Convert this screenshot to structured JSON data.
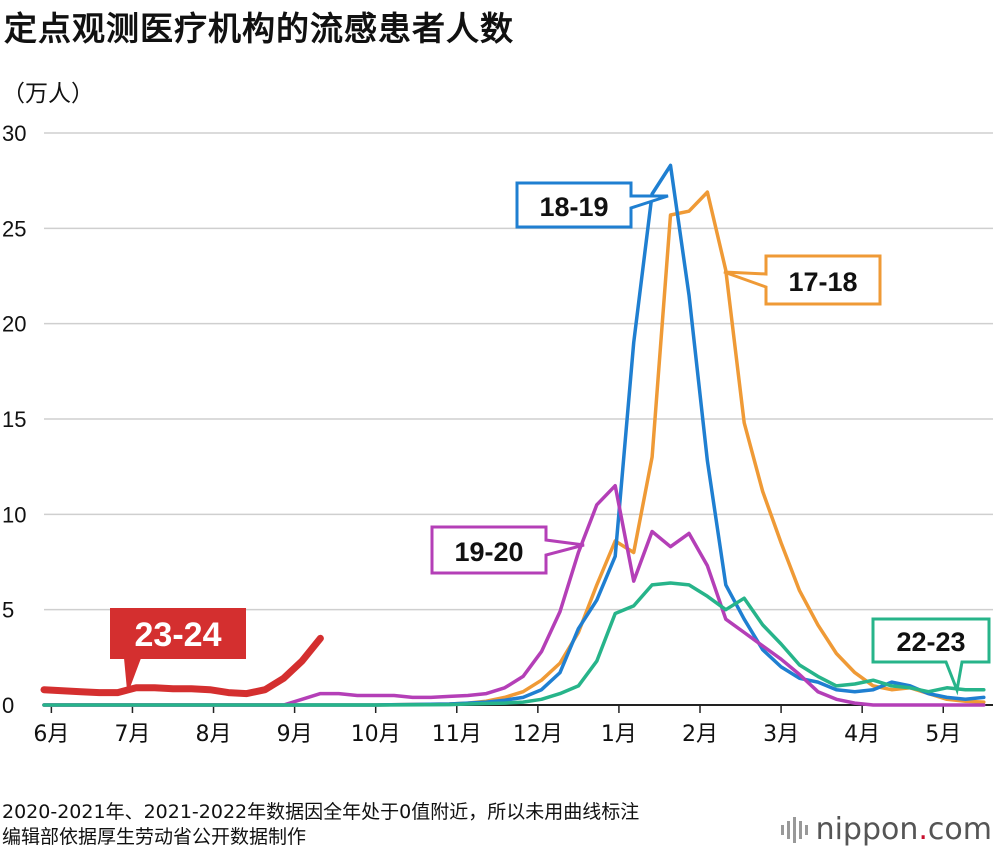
{
  "title": "定点观测医疗机构的流感患者人数",
  "unit_label": "（万人）",
  "footer": {
    "note": "2020-2021年、2021-2022年数据因全年处于0值附近，所以未用曲线标注",
    "source": "编辑部依据厚生劳动省公开数据制作"
  },
  "brand": {
    "name": "nippon",
    "dot": ".",
    "tld": "com"
  },
  "chart_data": {
    "type": "line",
    "title": "定点观测医疗机构的流感患者人数",
    "ylabel": "（万人）",
    "ylim": [
      0,
      30
    ],
    "yticks": [
      0,
      5,
      10,
      15,
      20,
      25,
      30
    ],
    "xlim": [
      0,
      51.5
    ],
    "x_unit": "week index from start of June",
    "x_tick_labels": [
      "6月",
      "7月",
      "8月",
      "9月",
      "10月",
      "11月",
      "12月",
      "1月",
      "2月",
      "3月",
      "4月",
      "5月"
    ],
    "x_tick_positions": [
      0.4,
      4.8,
      9.2,
      13.6,
      18.0,
      22.4,
      26.8,
      31.2,
      35.6,
      40.0,
      44.4,
      48.8
    ],
    "grid": true,
    "series": [
      {
        "name": "17-18",
        "color": "#ef9a36",
        "width": 3.5,
        "x": [
          0,
          13,
          18,
          22,
          23,
          24,
          25,
          26,
          27,
          28,
          29,
          30,
          31,
          32,
          33,
          34,
          35,
          36,
          37,
          38,
          39,
          40,
          41,
          42,
          43,
          44,
          45,
          46,
          47,
          48,
          49,
          50,
          51
        ],
        "y": [
          0,
          0,
          0,
          0.05,
          0.1,
          0.2,
          0.4,
          0.7,
          1.3,
          2.2,
          3.8,
          6.3,
          8.6,
          8.0,
          13.0,
          25.7,
          25.9,
          26.9,
          22.8,
          14.8,
          11.2,
          8.5,
          6.0,
          4.2,
          2.7,
          1.7,
          1.0,
          0.8,
          0.9,
          0.6,
          0.3,
          0.2,
          0.15
        ],
        "label": "17-18"
      },
      {
        "name": "18-19",
        "color": "#1f7fd1",
        "width": 3.5,
        "x": [
          0,
          13,
          18,
          22,
          23,
          24,
          25,
          26,
          27,
          28,
          29,
          30,
          31,
          32,
          33,
          34,
          35,
          36,
          37,
          38,
          39,
          40,
          41,
          42,
          43,
          44,
          45,
          46,
          47,
          48,
          49,
          50,
          51
        ],
        "y": [
          0,
          0,
          0,
          0.05,
          0.1,
          0.15,
          0.25,
          0.4,
          0.8,
          1.7,
          4.0,
          5.5,
          7.8,
          19.0,
          26.8,
          28.3,
          21.5,
          12.8,
          6.3,
          4.5,
          2.9,
          2.0,
          1.4,
          1.2,
          0.8,
          0.7,
          0.8,
          1.2,
          1.0,
          0.6,
          0.4,
          0.3,
          0.4
        ],
        "label": "18-19"
      },
      {
        "name": "19-20",
        "color": "#b43fb7",
        "width": 3.5,
        "x": [
          0,
          13,
          14,
          15,
          16,
          17,
          18,
          19,
          20,
          21,
          22,
          23,
          24,
          25,
          26,
          27,
          28,
          29,
          30,
          31,
          32,
          33,
          34,
          35,
          36,
          37,
          38,
          39,
          40,
          41,
          42,
          43,
          44,
          45,
          46,
          47,
          48,
          49,
          50,
          51
        ],
        "y": [
          0,
          0,
          0.3,
          0.6,
          0.6,
          0.5,
          0.5,
          0.5,
          0.4,
          0.4,
          0.45,
          0.5,
          0.6,
          0.9,
          1.5,
          2.8,
          4.9,
          8.0,
          10.5,
          11.5,
          6.5,
          9.1,
          8.3,
          9.0,
          7.3,
          4.5,
          3.8,
          3.1,
          2.4,
          1.6,
          0.7,
          0.3,
          0.1,
          0,
          0,
          0,
          0,
          0,
          0,
          0
        ],
        "label": "19-20"
      },
      {
        "name": "22-23",
        "color": "#27b48a",
        "width": 3.5,
        "x": [
          0,
          13,
          18,
          22,
          23,
          24,
          25,
          26,
          27,
          28,
          29,
          30,
          31,
          32,
          33,
          34,
          35,
          36,
          37,
          38,
          39,
          40,
          41,
          42,
          43,
          44,
          45,
          46,
          47,
          48,
          49,
          50,
          51
        ],
        "y": [
          0,
          0,
          0,
          0.02,
          0.05,
          0.08,
          0.1,
          0.15,
          0.3,
          0.6,
          1.0,
          2.3,
          4.8,
          5.2,
          6.3,
          6.4,
          6.3,
          5.7,
          5.0,
          5.6,
          4.2,
          3.2,
          2.1,
          1.5,
          1.0,
          1.1,
          1.3,
          1.0,
          0.9,
          0.7,
          0.9,
          0.8,
          0.8
        ],
        "label": "22-23"
      },
      {
        "name": "23-24",
        "color": "#d42f2f",
        "width": 7,
        "x": [
          0,
          1,
          2,
          3,
          4,
          5,
          6,
          7,
          8,
          9,
          10,
          11,
          12,
          13,
          14,
          15
        ],
        "y": [
          0.8,
          0.75,
          0.7,
          0.65,
          0.65,
          0.9,
          0.9,
          0.85,
          0.85,
          0.8,
          0.65,
          0.6,
          0.8,
          1.4,
          2.3,
          3.5
        ],
        "label": "23-24"
      }
    ]
  },
  "callouts": {
    "s1718": "17-18",
    "s1819": "18-19",
    "s1920": "19-20",
    "s2223": "22-23",
    "s2324": "23-24"
  }
}
